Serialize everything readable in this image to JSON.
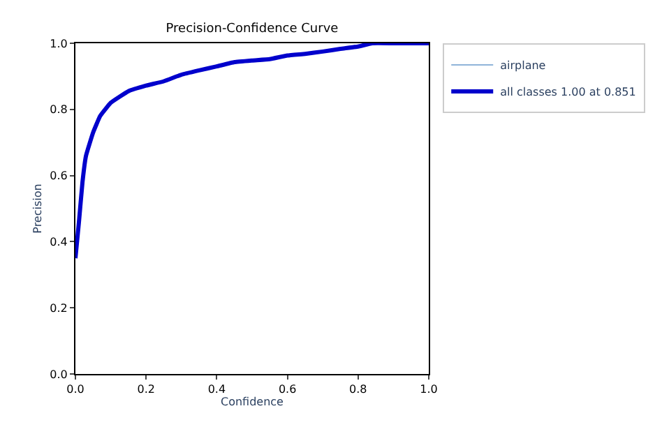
{
  "chart_data": {
    "type": "line",
    "title": "Precision-Confidence Curve",
    "xlabel": "Confidence",
    "ylabel": "Precision",
    "x": [
      0,
      0.01,
      0.02,
      0.03,
      0.05,
      0.07,
      0.1,
      0.15,
      0.2,
      0.25,
      0.3,
      0.35,
      0.4,
      0.45,
      0.5,
      0.55,
      0.6,
      0.65,
      0.7,
      0.75,
      0.8,
      0.84,
      0.9,
      1.0
    ],
    "series": [
      {
        "name": "airplane",
        "color": "#8fb4d9",
        "values": [
          null,
          null,
          null,
          null,
          null,
          null,
          null,
          null,
          null,
          null,
          null,
          null,
          null,
          null,
          null,
          null,
          null,
          null,
          null,
          null,
          null,
          null,
          null,
          null
        ]
      },
      {
        "name": "all classes 1.00 at 0.851",
        "color": "#0000cc",
        "values": [
          0.35,
          0.46,
          0.58,
          0.66,
          0.73,
          0.78,
          0.82,
          0.855,
          0.872,
          0.885,
          0.905,
          0.918,
          0.93,
          0.943,
          0.948,
          0.952,
          0.963,
          0.968,
          0.975,
          0.983,
          0.99,
          1.0,
          1.0,
          1.0
        ]
      }
    ],
    "xlim": [
      0,
      1
    ],
    "ylim": [
      0,
      1
    ],
    "xticks": [
      {
        "value": 0,
        "label": "0.0"
      },
      0.2,
      0.4,
      0.6,
      0.8,
      {
        "value": 1,
        "label": "1.0"
      }
    ],
    "yticks": [
      {
        "value": 0,
        "label": "0.0"
      },
      0.2,
      0.4,
      0.6,
      0.8,
      {
        "value": 1,
        "label": "1.0"
      }
    ],
    "legend": "top right"
  }
}
